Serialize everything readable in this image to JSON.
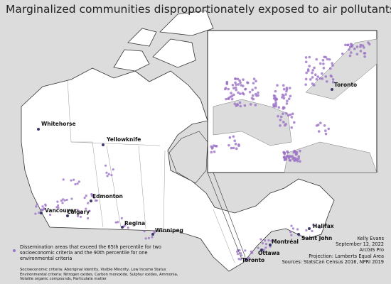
{
  "title": "Marginalized communities disproportionately exposed to air pollutants",
  "cities": [
    "Whitehorse",
    "Yellowknife",
    "Edmonton",
    "Vancouver",
    "Calgary",
    "Regina",
    "Winnipeg",
    "Toronto",
    "Ottawa",
    "Montréal",
    "Saint John",
    "Halifax"
  ],
  "inset_city": "Toronto",
  "legend": "Dissemination areas that exceed the 65th percentile for two socioeconomic criteria and the 90th percentile for one environmental criteria",
  "criteria": [
    "Socioeconomic criteria: Aboriginal Identity, Visible Minority, Low Income Status",
    "Environmental criteria: Nitrogen oxides, Carbon monoxide, Sulphur oxides, Ammonia, Volatile organic compounds, Particulate matter"
  ],
  "credits": [
    "Kelly Evans",
    "September 12, 2022",
    "ArcGIS Pro",
    "Projection: Lamberts Equal Area",
    "Sources: StatsCan Census 2016, NPRI 2019"
  ]
}
